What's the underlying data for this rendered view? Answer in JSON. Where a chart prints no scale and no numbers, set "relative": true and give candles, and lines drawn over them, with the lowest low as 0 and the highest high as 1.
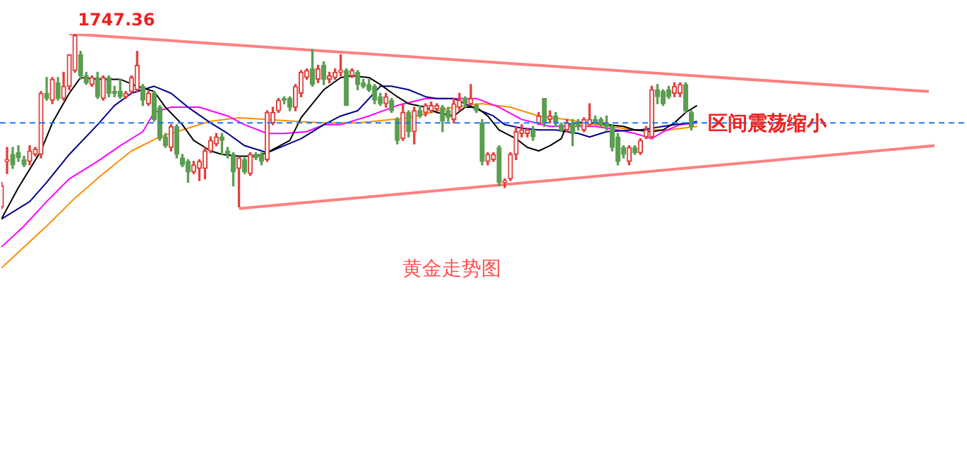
{
  "chart_data": {
    "type": "candlestick",
    "relative": true,
    "title": "黄金走势图",
    "legend": false,
    "tick_labels": false,
    "annotations": [
      "1747.36",
      "区间震荡缩小"
    ],
    "ref_lines": [
      {
        "axis": "y",
        "value": 0.49,
        "color": "#1e78ff",
        "line_style": "dashed"
      }
    ],
    "categories": [
      null,
      null,
      null,
      null,
      null,
      null,
      null,
      null,
      null,
      null,
      null,
      null,
      null,
      null,
      null,
      null,
      null,
      null,
      null,
      null,
      null,
      null,
      null,
      null,
      null,
      null,
      null,
      null,
      null,
      null,
      null,
      null,
      null,
      null,
      null,
      null,
      null,
      null,
      null,
      null,
      null,
      null,
      null,
      null,
      null,
      null,
      null,
      null,
      null,
      null,
      null,
      null,
      null,
      null,
      null,
      null,
      null,
      null,
      null,
      null,
      null,
      null,
      null,
      null,
      null,
      null,
      null,
      null,
      null,
      null,
      null,
      null,
      null,
      null,
      null,
      null,
      null,
      null,
      null,
      null,
      null,
      null,
      null,
      null,
      null,
      null,
      null,
      null,
      null,
      null,
      null,
      null,
      null,
      null,
      null,
      null,
      null,
      null,
      null,
      null,
      null,
      null,
      null,
      null,
      null,
      null,
      null,
      null,
      null,
      null,
      null,
      null,
      null,
      null,
      null,
      null,
      null,
      null,
      null,
      null,
      null,
      null,
      null,
      null,
      null,
      null,
      null,
      null,
      null,
      null,
      null,
      null,
      null,
      null,
      null,
      null,
      null,
      null,
      null,
      null,
      null,
      null,
      null,
      null,
      null,
      null,
      null,
      null,
      null,
      null,
      null,
      null,
      null,
      null,
      null,
      null,
      null,
      null,
      null,
      null,
      null,
      null,
      null,
      null,
      null,
      null
    ],
    "ohlc": [
      [
        0.01,
        0.15,
        0,
        0.13
      ],
      [
        0.27,
        0.35,
        0.2,
        0.28
      ],
      [
        0.31,
        0.35,
        0.23,
        0.25
      ],
      [
        0.32,
        0.36,
        0.27,
        0.29
      ],
      [
        0.28,
        0.3,
        0.24,
        0.25
      ],
      [
        0.27,
        0.36,
        0.25,
        0.33
      ],
      [
        0.31,
        0.35,
        0.3,
        0.34
      ],
      [
        0.31,
        0.67,
        0.29,
        0.66
      ],
      [
        0.66,
        0.75,
        0.62,
        0.63
      ],
      [
        0.62,
        0.75,
        0.6,
        0.74
      ],
      [
        0.72,
        0.75,
        0.62,
        0.63
      ],
      [
        0.63,
        0.78,
        0.62,
        0.7
      ],
      [
        0.7,
        0.88,
        0.68,
        0.88
      ],
      [
        0.79,
        1,
        0.78,
        0.99
      ],
      [
        0.88,
        0.9,
        0.74,
        0.76
      ],
      [
        0.76,
        0.78,
        0.71,
        0.72
      ],
      [
        0.71,
        0.76,
        0.7,
        0.75
      ],
      [
        0.75,
        0.78,
        0.63,
        0.64
      ],
      [
        0.63,
        0.76,
        0.62,
        0.75
      ],
      [
        0.75,
        0.76,
        0.64,
        0.66
      ],
      [
        0.67,
        0.7,
        0.64,
        0.66
      ],
      [
        0.67,
        0.74,
        0.63,
        0.64
      ],
      [
        0.64,
        0.67,
        0.63,
        0.66
      ],
      [
        0.67,
        0.76,
        0.66,
        0.75
      ],
      [
        0.68,
        0.9,
        0.67,
        0.82
      ],
      [
        0.7,
        0.71,
        0.59,
        0.62
      ],
      [
        0.6,
        0.67,
        0.59,
        0.66
      ],
      [
        0.66,
        0.67,
        0.5,
        0.51
      ],
      [
        0.58,
        0.59,
        0.39,
        0.4
      ],
      [
        0.41,
        0.43,
        0.35,
        0.36
      ],
      [
        0.35,
        0.48,
        0.33,
        0.47
      ],
      [
        0.47,
        0.48,
        0.29,
        0.31
      ],
      [
        0.29,
        0.31,
        0.24,
        0.25
      ],
      [
        0.27,
        0.28,
        0.15,
        0.21
      ],
      [
        0.21,
        0.27,
        0.2,
        0.25
      ],
      [
        0.23,
        0.28,
        0.16,
        0.27
      ],
      [
        0.23,
        0.35,
        0.17,
        0.33
      ],
      [
        0.33,
        0.41,
        0.32,
        0.39
      ],
      [
        0.37,
        0.43,
        0.36,
        0.41
      ],
      [
        0.41,
        0.43,
        0.31,
        0.39
      ],
      [
        0.33,
        0.35,
        0.29,
        0.31
      ],
      [
        0.31,
        0.32,
        0.13,
        0.21
      ],
      [
        0.23,
        0.29,
        0.01,
        0.29
      ],
      [
        0.28,
        0.29,
        0.2,
        0.21
      ],
      [
        0.2,
        0.32,
        0.19,
        0.31
      ],
      [
        0.31,
        0.32,
        0.28,
        0.29
      ],
      [
        0.31,
        0.32,
        0.25,
        0.27
      ],
      [
        0.28,
        0.56,
        0.27,
        0.55
      ],
      [
        0.49,
        0.58,
        0.48,
        0.55
      ],
      [
        0.56,
        0.63,
        0.55,
        0.62
      ],
      [
        0.63,
        0.64,
        0.6,
        0.62
      ],
      [
        0.63,
        0.64,
        0.56,
        0.58
      ],
      [
        0.58,
        0.71,
        0.56,
        0.7
      ],
      [
        0.66,
        0.79,
        0.64,
        0.78
      ],
      [
        0.75,
        0.8,
        0.74,
        0.79
      ],
      [
        0.8,
        0.91,
        0.7,
        0.71
      ],
      [
        0.74,
        0.82,
        0.72,
        0.8
      ],
      [
        0.82,
        0.84,
        0.71,
        0.74
      ],
      [
        0.74,
        0.78,
        0.72,
        0.76
      ],
      [
        0.75,
        0.8,
        0.74,
        0.78
      ],
      [
        0.78,
        0.88,
        0.76,
        0.79
      ],
      [
        0.79,
        0.8,
        0.59,
        0.59
      ],
      [
        0.76,
        0.8,
        0.75,
        0.79
      ],
      [
        0.78,
        0.79,
        0.68,
        0.71
      ],
      [
        0.72,
        0.74,
        0.69,
        0.7
      ],
      [
        0.71,
        0.74,
        0.67,
        0.68
      ],
      [
        0.7,
        0.71,
        0.6,
        0.62
      ],
      [
        0.64,
        0.66,
        0.59,
        0.6
      ],
      [
        0.6,
        0.66,
        0.58,
        0.64
      ],
      [
        0.62,
        0.63,
        0.55,
        0.56
      ],
      [
        0.51,
        0.52,
        0.37,
        0.39
      ],
      [
        0.4,
        0.6,
        0.39,
        0.55
      ],
      [
        0.55,
        0.56,
        0.41,
        0.44
      ],
      [
        0.44,
        0.58,
        0.37,
        0.56
      ],
      [
        0.56,
        0.59,
        0.52,
        0.53
      ],
      [
        0.55,
        0.6,
        0.53,
        0.59
      ],
      [
        0.56,
        0.61,
        0.55,
        0.59
      ],
      [
        0.57,
        0.6,
        0.56,
        0.59
      ],
      [
        0.58,
        0.59,
        0.44,
        0.5
      ],
      [
        0.56,
        0.58,
        0.5,
        0.52
      ],
      [
        0.51,
        0.63,
        0.49,
        0.6
      ],
      [
        0.58,
        0.66,
        0.56,
        0.62
      ],
      [
        0.63,
        0.64,
        0.58,
        0.6
      ],
      [
        0.6,
        0.71,
        0.59,
        0.63
      ],
      [
        0.59,
        0.6,
        0.55,
        0.56
      ],
      [
        0.49,
        0.51,
        0.25,
        0.27
      ],
      [
        0.27,
        0.32,
        0.25,
        0.31
      ],
      [
        0.28,
        0.32,
        0.27,
        0.31
      ],
      [
        0.35,
        0.36,
        0.13,
        0.15
      ],
      [
        0.15,
        0.17,
        0.12,
        0.16
      ],
      [
        0.17,
        0.32,
        0.16,
        0.31
      ],
      [
        0.31,
        0.47,
        0.28,
        0.44
      ],
      [
        0.43,
        0.48,
        0.41,
        0.45
      ],
      [
        0.43,
        0.46,
        0.41,
        0.45
      ],
      [
        0.45,
        0.47,
        0.39,
        0.41
      ],
      [
        0.49,
        0.55,
        0.48,
        0.53
      ],
      [
        0.63,
        0.63,
        0.47,
        0.49
      ],
      [
        0.51,
        0.56,
        0.49,
        0.53
      ],
      [
        0.53,
        0.55,
        0.47,
        0.49
      ],
      [
        0.48,
        0.49,
        0.44,
        0.45
      ],
      [
        0.45,
        0.51,
        0.44,
        0.49
      ],
      [
        0.49,
        0.51,
        0.36,
        0.43
      ],
      [
        0.49,
        0.51,
        0.45,
        0.47
      ],
      [
        0.45,
        0.52,
        0.44,
        0.51
      ],
      [
        0.48,
        0.6,
        0.47,
        0.51
      ],
      [
        0.51,
        0.53,
        0.49,
        0.49
      ],
      [
        0.51,
        0.52,
        0.47,
        0.48
      ],
      [
        0.49,
        0.53,
        0.45,
        0.47
      ],
      [
        0.47,
        0.48,
        0.33,
        0.35
      ],
      [
        0.41,
        0.43,
        0.25,
        0.27
      ],
      [
        0.35,
        0.36,
        0.29,
        0.31
      ],
      [
        0.27,
        0.36,
        0.25,
        0.35
      ],
      [
        0.35,
        0.36,
        0.31,
        0.32
      ],
      [
        0.32,
        0.4,
        0.31,
        0.39
      ],
      [
        0.41,
        0.47,
        0.4,
        0.45
      ],
      [
        0.41,
        0.7,
        0.4,
        0.68
      ],
      [
        0.68,
        0.71,
        0.6,
        0.64
      ],
      [
        0.67,
        0.68,
        0.59,
        0.6
      ],
      [
        0.68,
        0.7,
        0.63,
        0.64
      ],
      [
        0.66,
        0.72,
        0.64,
        0.7
      ],
      [
        0.66,
        0.72,
        0.64,
        0.71
      ],
      [
        0.71,
        0.72,
        0.55,
        0.56
      ],
      [
        0.55,
        0.56,
        0.45,
        0.47
      ],
      null,
      null,
      null,
      null,
      null,
      null,
      null,
      null,
      null,
      null,
      null,
      null,
      null,
      null,
      null,
      null,
      null,
      null,
      null,
      null,
      null,
      null,
      null,
      null,
      null,
      null,
      null,
      null,
      null,
      null,
      null,
      null,
      null,
      null,
      null,
      null,
      null,
      null,
      null,
      null,
      null,
      null,
      null
    ],
    "colors": [
      "#e0403c",
      "#e0403c",
      "#5a9e50",
      "#5a9e50",
      "#5a9e50",
      "#e0403c",
      "#e0403c",
      "#e0403c",
      "#5a9e50",
      "#e0403c",
      "#5a9e50",
      "#e0403c",
      "#e0403c",
      "#e0403c",
      "#5a9e50",
      "#5a9e50",
      "#e0403c",
      "#5a9e50",
      "#e0403c",
      "#5a9e50",
      "#5a9e50",
      "#5a9e50",
      "#e0403c",
      "#e0403c",
      "#e0403c",
      "#5a9e50",
      "#e0403c",
      "#5a9e50",
      "#5a9e50",
      "#5a9e50",
      "#e0403c",
      "#5a9e50",
      "#5a9e50",
      "#5a9e50",
      "#e0403c",
      "#e0403c",
      "#e0403c",
      "#e0403c",
      "#e0403c",
      "#5a9e50",
      "#5a9e50",
      "#5a9e50",
      "#e0403c",
      "#5a9e50",
      "#e0403c",
      "#5a9e50",
      "#5a9e50",
      "#e0403c",
      "#e0403c",
      "#e0403c",
      "#5a9e50",
      "#5a9e50",
      "#e0403c",
      "#e0403c",
      "#e0403c",
      "#5a9e50",
      "#e0403c",
      "#5a9e50",
      "#e0403c",
      "#e0403c",
      "#e0403c",
      "#5a9e50",
      "#e0403c",
      "#5a9e50",
      "#5a9e50",
      "#5a9e50",
      "#5a9e50",
      "#5a9e50",
      "#e0403c",
      "#5a9e50",
      "#5a9e50",
      "#e0403c",
      "#5a9e50",
      "#e0403c",
      "#5a9e50",
      "#e0403c",
      "#e0403c",
      "#e0403c",
      "#5a9e50",
      "#5a9e50",
      "#e0403c",
      "#e0403c",
      "#5a9e50",
      "#e0403c",
      "#5a9e50",
      "#5a9e50",
      "#e0403c",
      "#e0403c",
      "#5a9e50",
      "#e0403c",
      "#e0403c",
      "#e0403c",
      "#e0403c",
      "#e0403c",
      "#5a9e50",
      "#e0403c",
      "#5a9e50",
      "#e0403c",
      "#5a9e50",
      "#5a9e50",
      "#e0403c",
      "#5a9e50",
      "#5a9e50",
      "#e0403c",
      "#e0403c",
      "#5a9e50",
      "#5a9e50",
      "#5a9e50",
      "#5a9e50",
      "#5a9e50",
      "#5a9e50",
      "#e0403c",
      "#5a9e50",
      "#e0403c",
      "#e0403c",
      "#e0403c",
      "#5a9e50",
      "#5a9e50",
      "#5a9e50",
      "#e0403c",
      "#e0403c",
      "#5a9e50",
      "#5a9e50",
      null,
      null,
      null,
      null,
      null,
      null,
      null,
      null,
      null,
      null,
      null,
      null,
      null,
      null,
      null,
      null,
      null,
      null,
      null,
      null,
      null,
      null,
      null,
      null,
      null,
      null,
      null,
      null,
      null,
      null,
      null,
      null,
      null,
      null,
      null,
      null,
      null,
      null,
      null,
      null,
      null,
      null,
      null
    ],
    "series": [
      {
        "type": "line",
        "color": "#000000",
        "values": [
          -0.06,
          null,
          null,
          0.12,
          null,
          null,
          null,
          0.33,
          null,
          0.49,
          null,
          null,
          0.66,
          null,
          0.75,
          null,
          null,
          0.74,
          null,
          null,
          null,
          0.74,
          null,
          null,
          0.7,
          null,
          null,
          0.67,
          null,
          0.58,
          null,
          null,
          0.48,
          null,
          0.39,
          null,
          null,
          0.33,
          null,
          0.31,
          null,
          null,
          0.3,
          null,
          null,
          0.3,
          null,
          0.32,
          null,
          null,
          null,
          0.39,
          null,
          0.52,
          null,
          null,
          0.64,
          0.68,
          null,
          null,
          0.75,
          null,
          0.76,
          null,
          null,
          0.75,
          null,
          0.71,
          null,
          null,
          0.64,
          null,
          0.6,
          null,
          null,
          0.58,
          null,
          0.55,
          null,
          null,
          0.53,
          null,
          0.58,
          null,
          0.58,
          null,
          0.53,
          null,
          0.45,
          null,
          null,
          0.4,
          null,
          0.35,
          null,
          0.33,
          null,
          0.36,
          null,
          0.4,
          0.48,
          null,
          0.49,
          null,
          null,
          0.49,
          null,
          0.48,
          null,
          null,
          0.47,
          null,
          0.45,
          null,
          null,
          0.44,
          null,
          0.45,
          null,
          0.49,
          null,
          0.55,
          null,
          0.59,
          null,
          null,
          null,
          null,
          null,
          null,
          null,
          null,
          null,
          null,
          null,
          null,
          null,
          null,
          null,
          null,
          null,
          null,
          null,
          null,
          null,
          null,
          null,
          null,
          null,
          null,
          null,
          null,
          null,
          null,
          null,
          null,
          null,
          null,
          null,
          null,
          null,
          null,
          null,
          null,
          null,
          null
        ]
      },
      {
        "type": "line",
        "color": "#00008b",
        "values": [
          -0.06,
          null,
          null,
          null,
          null,
          0.04,
          null,
          null,
          0.15,
          null,
          null,
          null,
          0.31,
          null,
          null,
          null,
          null,
          0.48,
          null,
          null,
          0.59,
          null,
          null,
          0.66,
          null,
          null,
          null,
          0.7,
          null,
          null,
          0.66,
          null,
          null,
          0.58,
          null,
          null,
          null,
          0.49,
          null,
          null,
          0.43,
          null,
          null,
          0.36,
          null,
          null,
          null,
          0.32,
          null,
          null,
          0.36,
          null,
          null,
          0.4,
          null,
          null,
          null,
          0.48,
          null,
          null,
          0.53,
          null,
          null,
          0.56,
          null,
          null,
          null,
          0.7,
          null,
          0.7,
          null,
          null,
          0.68,
          null,
          null,
          0.64,
          null,
          0.63,
          null,
          null,
          0.63,
          null,
          0.6,
          null,
          0.57,
          null,
          null,
          0.53,
          null,
          0.48,
          null,
          null,
          0.46,
          null,
          null,
          0.45,
          null,
          null,
          0.45,
          null,
          null,
          null,
          0.43,
          null,
          0.41,
          null,
          null,
          0.44,
          null,
          null,
          null,
          null,
          0.45,
          0.45,
          null,
          null,
          null,
          0.47,
          null,
          0.48,
          null,
          null,
          0.49,
          0.5,
          null,
          null,
          null,
          null,
          null,
          null,
          null,
          null,
          null,
          null,
          null,
          null,
          null,
          null,
          null,
          null,
          null,
          null,
          null,
          null,
          null,
          null,
          null,
          null,
          null,
          null,
          null,
          null,
          null,
          null,
          null,
          null,
          null,
          null,
          null,
          null,
          null,
          null,
          null,
          null,
          null,
          null
        ]
      },
      {
        "type": "line",
        "color": "#ff00ff",
        "values": [
          -0.22,
          null,
          null,
          null,
          -0.1,
          null,
          null,
          null,
          0.04,
          null,
          null,
          null,
          0.17,
          null,
          null,
          null,
          null,
          0.27,
          null,
          null,
          null,
          0.36,
          null,
          null,
          null,
          0.44,
          null,
          0.55,
          null,
          null,
          0.58,
          null,
          null,
          null,
          null,
          0.58,
          null,
          null,
          null,
          null,
          0.53,
          null,
          null,
          0.48,
          null,
          null,
          null,
          0.43,
          null,
          null,
          0.43,
          null,
          null,
          null,
          0.44,
          null,
          null,
          0.48,
          null,
          null,
          0.48,
          null,
          null,
          null,
          null,
          0.53,
          null,
          null,
          null,
          null,
          0.59,
          null,
          null,
          null,
          null,
          0.63,
          null,
          null,
          null,
          null,
          0.63,
          null,
          null,
          null,
          0.63,
          null,
          null,
          null,
          0.58,
          null,
          null,
          null,
          0.51,
          null,
          null,
          null,
          null,
          0.47,
          null,
          null,
          null,
          0.47,
          null,
          null,
          null,
          0.47,
          null,
          null,
          null,
          0.45,
          null,
          null,
          0.43,
          null,
          null,
          0.4,
          null,
          0.44,
          null,
          null,
          0.48,
          null,
          null,
          0.49,
          null,
          null,
          null,
          null,
          null,
          null,
          null,
          null,
          null,
          null,
          null,
          null,
          null,
          null,
          null,
          null,
          null,
          null,
          null,
          null,
          null,
          null,
          null,
          null,
          null,
          null,
          null,
          null,
          null,
          null,
          null,
          null,
          null,
          null,
          null,
          null,
          null,
          null,
          null,
          null,
          null,
          null
        ]
      },
      {
        "type": "line",
        "color": "#ff8c00",
        "values": [
          -0.34,
          null,
          null,
          null,
          null,
          null,
          null,
          null,
          -0.1,
          null,
          null,
          null,
          null,
          0.06,
          null,
          null,
          null,
          null,
          0.2,
          null,
          null,
          null,
          null,
          0.33,
          null,
          null,
          null,
          null,
          0.41,
          null,
          null,
          null,
          0.45,
          null,
          null,
          null,
          null,
          0.5,
          null,
          null,
          null,
          null,
          0.52,
          null,
          null,
          null,
          null,
          0.51,
          null,
          null,
          null,
          null,
          0.5,
          null,
          null,
          null,
          null,
          0.49,
          null,
          null,
          null,
          null,
          null,
          0.49,
          null,
          null,
          null,
          null,
          null,
          null,
          null,
          null,
          0.52,
          null,
          null,
          null,
          null,
          null,
          null,
          null,
          0.58,
          null,
          null,
          null,
          null,
          0.6,
          null,
          null,
          null,
          null,
          0.58,
          null,
          null,
          null,
          null,
          0.53,
          null,
          null,
          null,
          null,
          0.51,
          null,
          null,
          null,
          null,
          0.48,
          null,
          null,
          null,
          null,
          null,
          null,
          0.45,
          null,
          null,
          null,
          null,
          null,
          0.45,
          null,
          null,
          null,
          null,
          0.47,
          null,
          null,
          null,
          null,
          null,
          null,
          null,
          null,
          null,
          null,
          null,
          null,
          null,
          null,
          null,
          null,
          null,
          null,
          null,
          null,
          null,
          null,
          null,
          null,
          null,
          null,
          null,
          null,
          null,
          null,
          null,
          null,
          null,
          null,
          null,
          null,
          null,
          null,
          null,
          null,
          null,
          null
        ]
      },
      {
        "type": "line",
        "color": "#ff8080",
        "values": [
          null,
          null,
          null,
          null,
          null,
          null,
          null,
          null,
          null,
          null,
          null,
          null,
          1,
          null,
          null,
          null,
          null,
          null,
          null,
          null,
          null,
          null,
          null,
          null,
          null,
          null,
          null,
          null,
          null,
          null,
          null,
          null,
          null,
          null,
          null,
          null,
          null,
          null,
          null,
          null,
          null,
          null,
          null,
          null,
          null,
          null,
          null,
          null,
          null,
          null,
          null,
          null,
          null,
          null,
          null,
          null,
          null,
          null,
          null,
          null,
          null,
          null,
          null,
          null,
          null,
          null,
          null,
          null,
          null,
          null,
          null,
          null,
          null,
          null,
          null,
          null,
          null,
          null,
          null,
          null,
          null,
          null,
          null,
          null,
          null,
          null,
          null,
          null,
          null,
          null,
          null,
          null,
          null,
          null,
          null,
          null,
          null,
          null,
          null,
          null,
          null,
          null,
          null,
          null,
          null,
          null,
          null,
          null,
          null,
          null,
          null,
          null,
          null,
          null,
          null,
          null,
          null,
          null,
          null,
          null,
          null,
          null,
          null,
          null,
          null,
          null,
          null,
          null,
          null,
          null,
          null,
          null,
          null,
          null,
          null,
          null,
          null,
          null,
          null,
          null,
          null,
          null,
          null,
          null,
          null,
          null,
          null,
          null,
          null,
          null,
          null,
          null,
          null,
          null,
          null,
          null,
          null,
          null,
          null,
          null,
          null,
          null,
          null,
          null,
          0.67,
          null
        ]
      },
      {
        "type": "line",
        "color": "#ff8080",
        "values": [
          null,
          null,
          null,
          null,
          null,
          null,
          null,
          null,
          null,
          null,
          null,
          null,
          null,
          null,
          null,
          null,
          null,
          null,
          null,
          null,
          null,
          null,
          null,
          null,
          null,
          null,
          null,
          null,
          null,
          null,
          null,
          null,
          null,
          null,
          null,
          null,
          null,
          null,
          null,
          null,
          null,
          null,
          0,
          null,
          null,
          null,
          null,
          null,
          null,
          null,
          null,
          null,
          null,
          null,
          null,
          null,
          null,
          null,
          null,
          null,
          null,
          null,
          null,
          null,
          null,
          null,
          null,
          null,
          null,
          null,
          null,
          null,
          null,
          null,
          null,
          null,
          null,
          null,
          null,
          null,
          null,
          null,
          null,
          null,
          null,
          null,
          null,
          null,
          null,
          null,
          null,
          null,
          null,
          null,
          null,
          null,
          null,
          null,
          null,
          null,
          null,
          null,
          null,
          null,
          null,
          null,
          null,
          null,
          null,
          null,
          null,
          null,
          null,
          null,
          null,
          null,
          null,
          null,
          null,
          null,
          null,
          null,
          null,
          null,
          null,
          null,
          null,
          null,
          null,
          null,
          null,
          null,
          null,
          null,
          null,
          null,
          null,
          null,
          null,
          null,
          null,
          null,
          null,
          null,
          null,
          null,
          null,
          null,
          null,
          null,
          null,
          null,
          null,
          null,
          null,
          null,
          null,
          null,
          null,
          null,
          null,
          null,
          null,
          null,
          null,
          0.36
        ]
      }
    ]
  }
}
